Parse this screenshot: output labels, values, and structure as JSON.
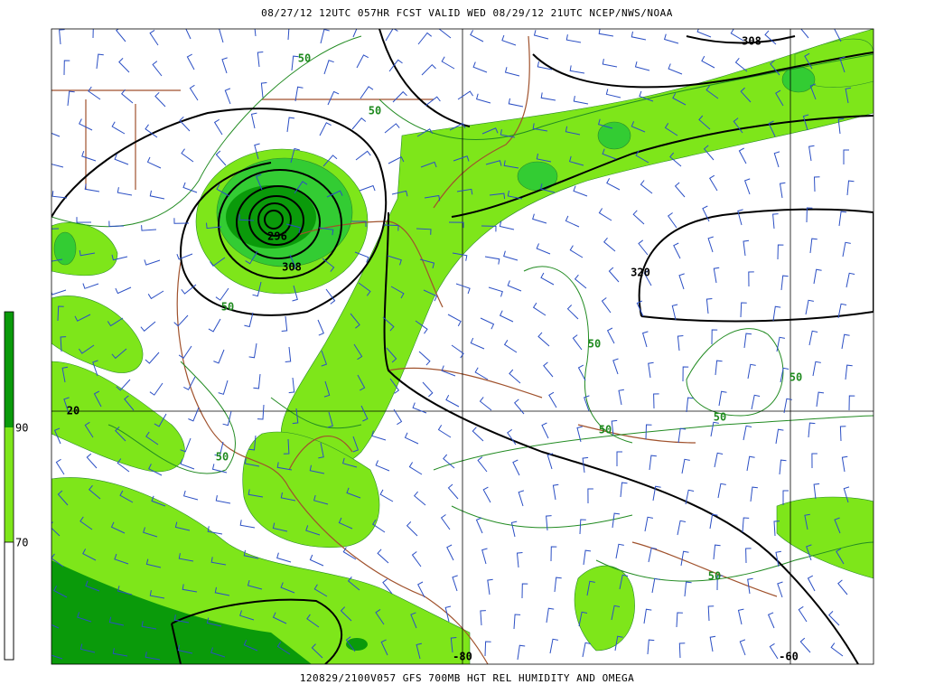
{
  "header": "08/27/12 12UTC  057HR  FCST VALID WED 08/29/12 21UTC  NCEP/NWS/NOAA",
  "footer": "120829/2100V057 GFS 700MB HGT REL HUMIDITY AND OMEGA",
  "colorbar": {
    "labels": [
      "90",
      "70"
    ]
  },
  "grid_labels": [
    "20",
    "-80",
    "-60"
  ],
  "height_labels": [
    "308",
    "296",
    "308",
    "320"
  ],
  "humidity_labels": [
    "50",
    "50",
    "50",
    "50",
    "50",
    "50",
    "50",
    "50",
    "50"
  ]
}
